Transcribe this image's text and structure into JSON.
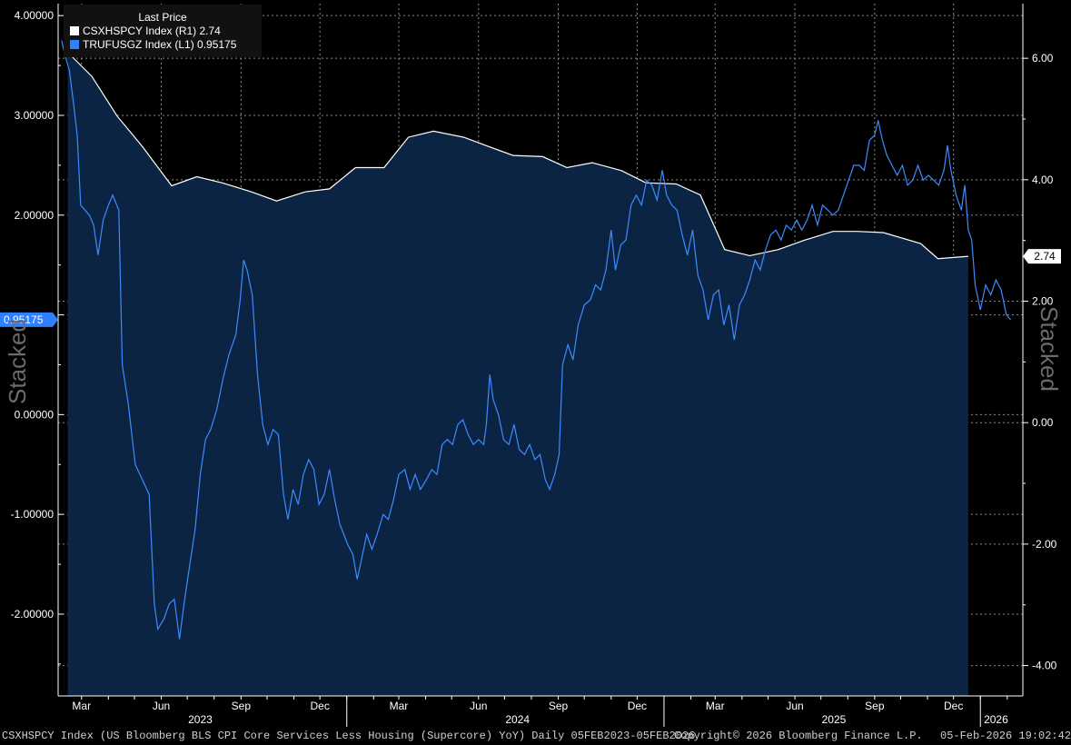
{
  "chart_data": {
    "type": "line",
    "legend_position": "top-left",
    "grid": true,
    "legend_title": "Last Price",
    "series": [
      {
        "name": "CSXHSPCY Index",
        "axis": "R1",
        "legend_label": "CSXHSPCY Index  (R1) 2.74",
        "last_label": "2.74",
        "color": "#ffffff",
        "style": "area",
        "fill": "#0b2444",
        "points": [
          [
            "2023-02-13",
            6.1
          ],
          [
            "2023-03-13",
            5.7
          ],
          [
            "2023-04-11",
            5.05
          ],
          [
            "2023-05-10",
            4.55
          ],
          [
            "2023-06-13",
            3.9
          ],
          [
            "2023-07-12",
            4.05
          ],
          [
            "2023-08-10",
            3.95
          ],
          [
            "2023-09-13",
            3.8
          ],
          [
            "2023-10-12",
            3.65
          ],
          [
            "2023-11-14",
            3.8
          ],
          [
            "2023-12-12",
            3.85
          ],
          [
            "2024-01-11",
            4.2
          ],
          [
            "2024-02-13",
            4.2
          ],
          [
            "2024-03-12",
            4.7
          ],
          [
            "2024-04-10",
            4.8
          ],
          [
            "2024-05-15",
            4.7
          ],
          [
            "2024-06-12",
            4.55
          ],
          [
            "2024-07-11",
            4.4
          ],
          [
            "2024-08-14",
            4.38
          ],
          [
            "2024-09-11",
            4.2
          ],
          [
            "2024-10-10",
            4.28
          ],
          [
            "2024-11-13",
            4.15
          ],
          [
            "2024-12-11",
            3.95
          ],
          [
            "2025-01-15",
            3.93
          ],
          [
            "2025-02-12",
            3.75
          ],
          [
            "2025-03-12",
            2.85
          ],
          [
            "2025-04-10",
            2.75
          ],
          [
            "2025-05-13",
            2.85
          ],
          [
            "2025-06-11",
            3.0
          ],
          [
            "2025-07-15",
            3.15
          ],
          [
            "2025-08-12",
            3.15
          ],
          [
            "2025-09-11",
            3.13
          ],
          [
            "2025-10-24",
            2.95
          ],
          [
            "2025-11-13",
            2.7
          ],
          [
            "2025-12-18",
            2.74
          ]
        ]
      },
      {
        "name": "TRUFUSGZ Index",
        "axis": "L1",
        "legend_label": "TRUFUSGZ Index  (L1) 0.95175",
        "last_label": "0.95175",
        "color": "#3d8bff",
        "style": "line",
        "points": [
          [
            "2023-02-06",
            3.75
          ],
          [
            "2023-02-10",
            3.6
          ],
          [
            "2023-02-15",
            3.45
          ],
          [
            "2023-02-20",
            3.1
          ],
          [
            "2023-02-24",
            2.8
          ],
          [
            "2023-02-28",
            2.1
          ],
          [
            "2023-03-05",
            2.05
          ],
          [
            "2023-03-10",
            2.0
          ],
          [
            "2023-03-15",
            1.9
          ],
          [
            "2023-03-20",
            1.6
          ],
          [
            "2023-03-26",
            1.95
          ],
          [
            "2023-04-01",
            2.1
          ],
          [
            "2023-04-06",
            2.2
          ],
          [
            "2023-04-13",
            2.05
          ],
          [
            "2023-04-17",
            0.5
          ],
          [
            "2023-04-24",
            0.1
          ],
          [
            "2023-05-02",
            -0.5
          ],
          [
            "2023-05-10",
            -0.65
          ],
          [
            "2023-05-18",
            -0.8
          ],
          [
            "2023-05-24",
            -1.9
          ],
          [
            "2023-05-28",
            -2.15
          ],
          [
            "2023-06-04",
            -2.05
          ],
          [
            "2023-06-10",
            -1.9
          ],
          [
            "2023-06-16",
            -1.85
          ],
          [
            "2023-06-22",
            -2.25
          ],
          [
            "2023-06-28",
            -1.85
          ],
          [
            "2023-07-04",
            -1.5
          ],
          [
            "2023-07-10",
            -1.15
          ],
          [
            "2023-07-16",
            -0.6
          ],
          [
            "2023-07-22",
            -0.25
          ],
          [
            "2023-07-28",
            -0.15
          ],
          [
            "2023-08-04",
            0.05
          ],
          [
            "2023-08-11",
            0.35
          ],
          [
            "2023-08-18",
            0.6
          ],
          [
            "2023-08-26",
            0.8
          ],
          [
            "2023-08-31",
            1.15
          ],
          [
            "2023-09-04",
            1.55
          ],
          [
            "2023-09-08",
            1.45
          ],
          [
            "2023-09-14",
            1.2
          ],
          [
            "2023-09-20",
            0.4
          ],
          [
            "2023-09-26",
            -0.1
          ],
          [
            "2023-10-02",
            -0.3
          ],
          [
            "2023-10-08",
            -0.15
          ],
          [
            "2023-10-14",
            -0.2
          ],
          [
            "2023-10-20",
            -0.8
          ],
          [
            "2023-10-25",
            -1.05
          ],
          [
            "2023-10-31",
            -0.75
          ],
          [
            "2023-11-06",
            -0.9
          ],
          [
            "2023-11-12",
            -0.6
          ],
          [
            "2023-11-18",
            -0.45
          ],
          [
            "2023-11-24",
            -0.55
          ],
          [
            "2023-11-30",
            -0.9
          ],
          [
            "2023-12-06",
            -0.8
          ],
          [
            "2023-12-12",
            -0.55
          ],
          [
            "2023-12-18",
            -0.85
          ],
          [
            "2023-12-24",
            -1.1
          ],
          [
            "2024-01-02",
            -1.3
          ],
          [
            "2024-01-08",
            -1.4
          ],
          [
            "2024-01-13",
            -1.65
          ],
          [
            "2024-01-18",
            -1.45
          ],
          [
            "2024-01-24",
            -1.2
          ],
          [
            "2024-01-30",
            -1.35
          ],
          [
            "2024-02-05",
            -1.2
          ],
          [
            "2024-02-12",
            -1.0
          ],
          [
            "2024-02-18",
            -1.05
          ],
          [
            "2024-02-24",
            -0.85
          ],
          [
            "2024-03-01",
            -0.6
          ],
          [
            "2024-03-08",
            -0.55
          ],
          [
            "2024-03-14",
            -0.75
          ],
          [
            "2024-03-20",
            -0.6
          ],
          [
            "2024-03-26",
            -0.75
          ],
          [
            "2024-04-02",
            -0.65
          ],
          [
            "2024-04-08",
            -0.55
          ],
          [
            "2024-04-14",
            -0.6
          ],
          [
            "2024-04-20",
            -0.3
          ],
          [
            "2024-04-26",
            -0.25
          ],
          [
            "2024-05-02",
            -0.3
          ],
          [
            "2024-05-08",
            -0.1
          ],
          [
            "2024-05-14",
            -0.05
          ],
          [
            "2024-05-20",
            -0.2
          ],
          [
            "2024-05-26",
            -0.3
          ],
          [
            "2024-06-01",
            -0.25
          ],
          [
            "2024-06-07",
            -0.3
          ],
          [
            "2024-06-10",
            -0.1
          ],
          [
            "2024-06-14",
            0.4
          ],
          [
            "2024-06-18",
            0.15
          ],
          [
            "2024-06-24",
            0.0
          ],
          [
            "2024-06-30",
            -0.25
          ],
          [
            "2024-07-06",
            -0.3
          ],
          [
            "2024-07-12",
            -0.1
          ],
          [
            "2024-07-18",
            -0.35
          ],
          [
            "2024-07-24",
            -0.4
          ],
          [
            "2024-07-30",
            -0.3
          ],
          [
            "2024-08-05",
            -0.45
          ],
          [
            "2024-08-11",
            -0.4
          ],
          [
            "2024-08-17",
            -0.65
          ],
          [
            "2024-08-22",
            -0.75
          ],
          [
            "2024-08-28",
            -0.6
          ],
          [
            "2024-09-02",
            -0.4
          ],
          [
            "2024-09-06",
            0.5
          ],
          [
            "2024-09-12",
            0.7
          ],
          [
            "2024-09-18",
            0.55
          ],
          [
            "2024-09-24",
            0.9
          ],
          [
            "2024-10-01",
            1.1
          ],
          [
            "2024-10-08",
            1.15
          ],
          [
            "2024-10-14",
            1.3
          ],
          [
            "2024-10-20",
            1.25
          ],
          [
            "2024-10-26",
            1.45
          ],
          [
            "2024-11-01",
            1.85
          ],
          [
            "2024-11-06",
            1.45
          ],
          [
            "2024-11-12",
            1.7
          ],
          [
            "2024-11-18",
            1.75
          ],
          [
            "2024-11-24",
            2.1
          ],
          [
            "2024-11-30",
            2.2
          ],
          [
            "2024-12-06",
            2.1
          ],
          [
            "2024-12-12",
            2.35
          ],
          [
            "2024-12-18",
            2.3
          ],
          [
            "2024-12-24",
            2.15
          ],
          [
            "2024-12-30",
            2.45
          ],
          [
            "2025-01-04",
            2.2
          ],
          [
            "2025-01-10",
            2.1
          ],
          [
            "2025-01-16",
            2.05
          ],
          [
            "2025-01-22",
            1.8
          ],
          [
            "2025-01-28",
            1.6
          ],
          [
            "2025-02-03",
            1.85
          ],
          [
            "2025-02-09",
            1.4
          ],
          [
            "2025-02-15",
            1.25
          ],
          [
            "2025-02-21",
            0.95
          ],
          [
            "2025-02-27",
            1.2
          ],
          [
            "2025-03-05",
            1.25
          ],
          [
            "2025-03-11",
            0.9
          ],
          [
            "2025-03-17",
            1.1
          ],
          [
            "2025-03-23",
            0.75
          ],
          [
            "2025-03-29",
            1.1
          ],
          [
            "2025-04-04",
            1.2
          ],
          [
            "2025-04-10",
            1.35
          ],
          [
            "2025-04-16",
            1.55
          ],
          [
            "2025-04-22",
            1.45
          ],
          [
            "2025-04-28",
            1.65
          ],
          [
            "2025-05-04",
            1.8
          ],
          [
            "2025-05-10",
            1.85
          ],
          [
            "2025-05-16",
            1.75
          ],
          [
            "2025-05-22",
            1.9
          ],
          [
            "2025-05-28",
            1.85
          ],
          [
            "2025-06-03",
            1.95
          ],
          [
            "2025-06-09",
            1.85
          ],
          [
            "2025-06-15",
            1.95
          ],
          [
            "2025-06-21",
            2.1
          ],
          [
            "2025-06-27",
            1.9
          ],
          [
            "2025-07-03",
            2.1
          ],
          [
            "2025-07-09",
            2.05
          ],
          [
            "2025-07-15",
            2.0
          ],
          [
            "2025-07-21",
            2.05
          ],
          [
            "2025-07-27",
            2.2
          ],
          [
            "2025-08-02",
            2.35
          ],
          [
            "2025-08-08",
            2.5
          ],
          [
            "2025-08-14",
            2.5
          ],
          [
            "2025-08-20",
            2.45
          ],
          [
            "2025-08-26",
            2.75
          ],
          [
            "2025-09-01",
            2.8
          ],
          [
            "2025-09-05",
            2.95
          ],
          [
            "2025-09-10",
            2.75
          ],
          [
            "2025-09-15",
            2.6
          ],
          [
            "2025-09-21",
            2.5
          ],
          [
            "2025-09-27",
            2.4
          ],
          [
            "2025-10-03",
            2.5
          ],
          [
            "2025-10-09",
            2.3
          ],
          [
            "2025-10-15",
            2.35
          ],
          [
            "2025-10-21",
            2.5
          ],
          [
            "2025-10-27",
            2.35
          ],
          [
            "2025-11-02",
            2.4
          ],
          [
            "2025-11-08",
            2.35
          ],
          [
            "2025-11-14",
            2.3
          ],
          [
            "2025-11-20",
            2.45
          ],
          [
            "2025-11-24",
            2.7
          ],
          [
            "2025-11-28",
            2.45
          ],
          [
            "2025-12-04",
            2.2
          ],
          [
            "2025-12-10",
            2.05
          ],
          [
            "2025-12-14",
            2.3
          ],
          [
            "2025-12-18",
            1.85
          ],
          [
            "2025-12-22",
            1.75
          ],
          [
            "2025-12-26",
            1.3
          ],
          [
            "2026-01-01",
            1.05
          ],
          [
            "2026-01-07",
            1.3
          ],
          [
            "2026-01-13",
            1.2
          ],
          [
            "2026-01-19",
            1.35
          ],
          [
            "2026-01-25",
            1.25
          ],
          [
            "2026-01-31",
            1.0
          ],
          [
            "2026-02-05",
            0.95175
          ]
        ]
      }
    ],
    "x_axis": {
      "range": [
        "2023-02-02",
        "2026-02-19"
      ],
      "ticks": [
        {
          "date": "2023-03-01",
          "label": "Mar"
        },
        {
          "date": "2023-06-01",
          "label": "Jun"
        },
        {
          "date": "2023-09-01",
          "label": "Sep"
        },
        {
          "date": "2023-12-01",
          "label": "Dec"
        },
        {
          "date": "2024-03-01",
          "label": "Mar"
        },
        {
          "date": "2024-06-01",
          "label": "Jun"
        },
        {
          "date": "2024-09-01",
          "label": "Sep"
        },
        {
          "date": "2024-12-01",
          "label": "Dec"
        },
        {
          "date": "2025-03-01",
          "label": "Mar"
        },
        {
          "date": "2025-06-01",
          "label": "Jun"
        },
        {
          "date": "2025-09-01",
          "label": "Sep"
        },
        {
          "date": "2025-12-01",
          "label": "Dec"
        }
      ],
      "year_labels": [
        {
          "date": "2023-07-16",
          "label": "2023"
        },
        {
          "date": "2024-07-16",
          "label": "2024"
        },
        {
          "date": "2025-07-16",
          "label": "2025"
        },
        {
          "date": "2026-01-19",
          "label": "2026"
        }
      ],
      "year_dividers": [
        "2024-01-01",
        "2025-01-01",
        "2026-01-01"
      ]
    },
    "y_left": {
      "range": [
        -2.82,
        4.12
      ],
      "ticks": [
        -2,
        -1,
        0,
        1,
        2,
        3,
        4
      ],
      "tick_labels": [
        "-2.00000",
        "-1.00000",
        "0.00000",
        "",
        "2.00000",
        "3.00000",
        "4.00000"
      ],
      "axis_label": "Stacked"
    },
    "y_right": {
      "range": [
        -4.5,
        6.9
      ],
      "ticks": [
        -4,
        -2,
        0,
        2,
        4,
        6
      ],
      "tick_labels": [
        "-4.00",
        "-2.00",
        "0.00",
        "2.00",
        "4.00",
        "6.00"
      ],
      "axis_label": "Stacked"
    }
  },
  "footer": {
    "left": "CSXHSPCY Index (US Bloomberg BLS CPI Core Services Less Housing (Supercore) YoY) Daily 05FEB2023-05FEB2026",
    "center": "Copyright© 2026 Bloomberg Finance L.P.",
    "right": "05-Feb-2026 19:02:42"
  }
}
